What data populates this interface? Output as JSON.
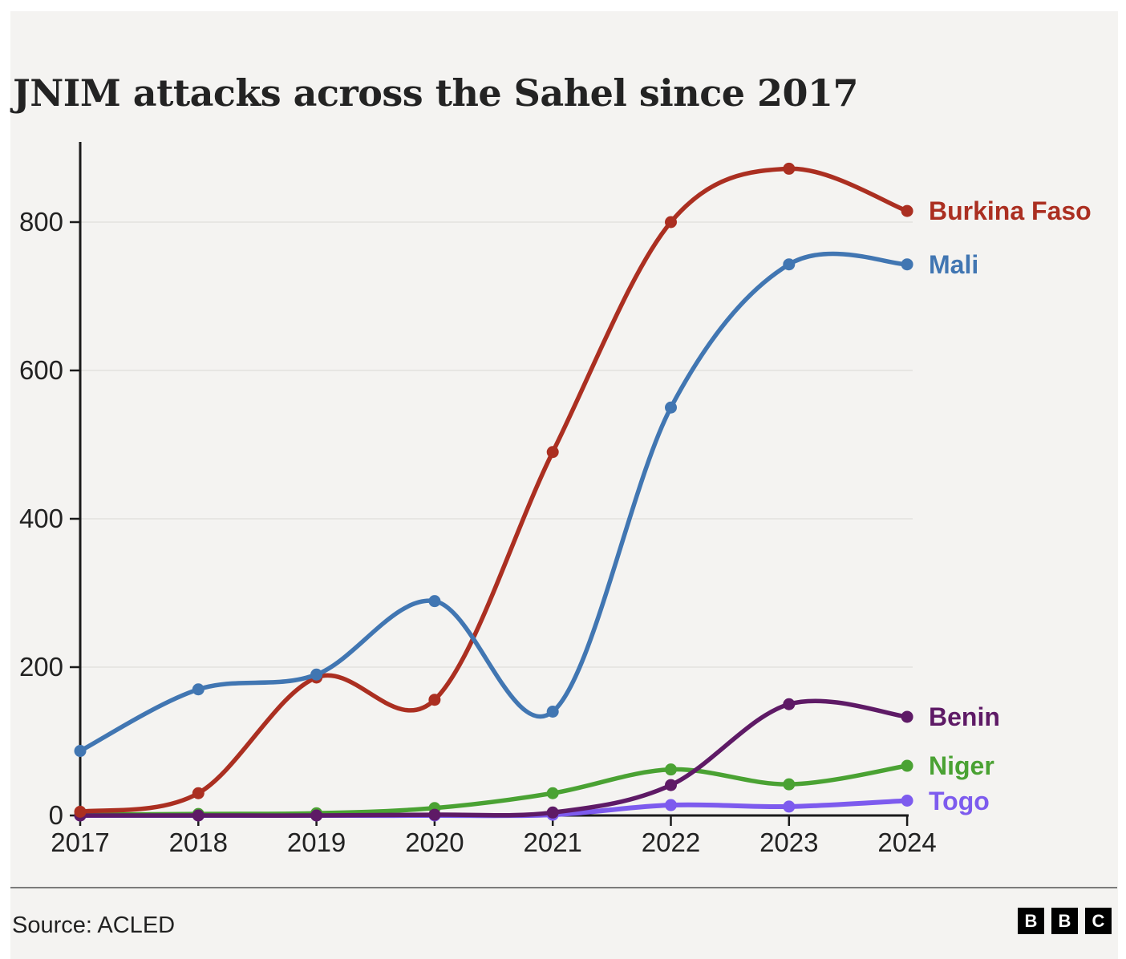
{
  "page": {
    "title": "JNIM attacks across the Sahel since 2017"
  },
  "chart_data": {
    "type": "line",
    "title": "JNIM attacks across the Sahel since 2017",
    "xlabel": "",
    "ylabel": "",
    "categories": [
      "2017",
      "2018",
      "2019",
      "2020",
      "2021",
      "2022",
      "2023",
      "2024"
    ],
    "y_ticks": [
      0,
      200,
      400,
      600,
      800
    ],
    "ylim": [
      0,
      905
    ],
    "grid": true,
    "legend_position": "end-of-line-labels",
    "series": [
      {
        "name": "Burkina Faso",
        "color": "#ab2f21",
        "values": [
          5,
          30,
          186,
          156,
          490,
          800,
          872,
          815
        ]
      },
      {
        "name": "Mali",
        "color": "#4176b2",
        "values": [
          87,
          170,
          190,
          289,
          140,
          550,
          743,
          743
        ]
      },
      {
        "name": "Benin",
        "color": "#5e1a66",
        "values": [
          0,
          0,
          0,
          1,
          4,
          41,
          150,
          133
        ]
      },
      {
        "name": "Niger",
        "color": "#4aa233",
        "values": [
          1,
          2,
          3,
          10,
          30,
          62,
          42,
          67
        ]
      },
      {
        "name": "Togo",
        "color": "#7d5bee",
        "values": [
          0,
          0,
          0,
          0,
          1,
          14,
          12,
          20
        ]
      }
    ]
  },
  "footer": {
    "source": "Source: ACLED",
    "logo_letters": [
      "B",
      "B",
      "C"
    ]
  },
  "colors": {
    "background_panel": "#f4f3f1",
    "page_background": "#ffffff",
    "axis": "#1a1a1a",
    "grid": "#e7e6e3",
    "text": "#222222",
    "divider": "#7b7b7b",
    "logo_background": "#000000",
    "logo_letter": "#ffffff"
  }
}
